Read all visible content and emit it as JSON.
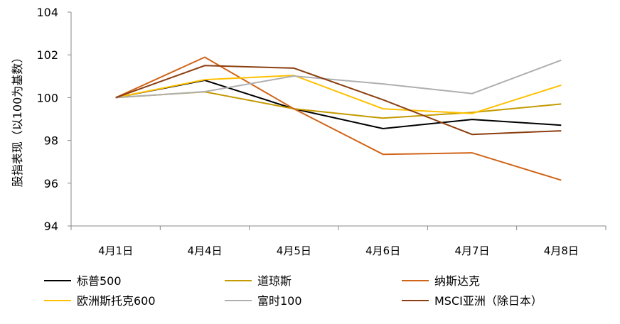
{
  "chart_data": {
    "type": "line",
    "title": "",
    "xlabel": "",
    "ylabel": "股指表现（以100为基数）",
    "ylim": [
      94,
      104
    ],
    "yticks": [
      94,
      96,
      98,
      100,
      102,
      104
    ],
    "ytick_labels": [
      "94",
      "96",
      "98",
      "100",
      "102",
      "104"
    ],
    "categories": [
      "4月1日",
      "4月4日",
      "4月5日",
      "4月6日",
      "4月7日",
      "4月8日"
    ],
    "grid": false,
    "legend_position": "bottom",
    "series": [
      {
        "name": "标普500",
        "color": "#000000",
        "values": [
          100,
          100.81,
          99.48,
          98.55,
          98.98,
          98.71
        ]
      },
      {
        "name": "道琼斯",
        "color": "#C49A00",
        "values": [
          100,
          100.27,
          99.48,
          99.04,
          99.31,
          99.7
        ]
      },
      {
        "name": "纳斯达克",
        "color": "#D06418",
        "values": [
          100,
          101.89,
          99.48,
          97.35,
          97.42,
          96.14
        ]
      },
      {
        "name": "欧洲斯托克600",
        "color": "#FFC000",
        "values": [
          100,
          100.84,
          101.04,
          99.48,
          99.26,
          100.58
        ]
      },
      {
        "name": "富时100",
        "color": "#AFAFAF",
        "values": [
          100,
          100.28,
          101.01,
          100.64,
          100.19,
          101.75
        ]
      },
      {
        "name": "MSCI亚洲（除日本）",
        "color": "#8B3E0F",
        "values": [
          100,
          101.5,
          101.38,
          99.9,
          98.28,
          98.45
        ]
      }
    ]
  }
}
